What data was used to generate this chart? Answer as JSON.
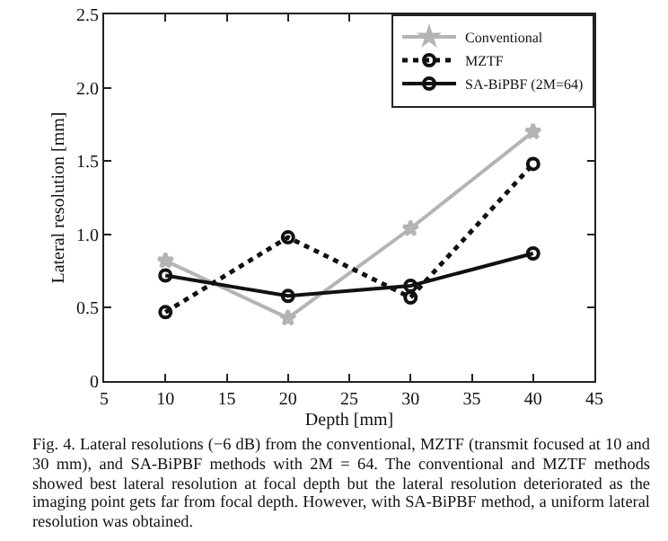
{
  "chart_data": {
    "type": "line",
    "xlabel": "Depth [mm]",
    "ylabel": "Lateral resolution [mm]",
    "x": [
      10,
      20,
      30,
      40
    ],
    "series": [
      {
        "name": "Conventional",
        "color": "#b4b4b4",
        "values": [
          0.82,
          0.43,
          1.04,
          1.7
        ],
        "marker": "star",
        "line_style": "solid"
      },
      {
        "name": "MZTF",
        "color": "#111111",
        "values": [
          0.47,
          0.98,
          0.57,
          1.48
        ],
        "marker": "circle",
        "line_style": "dotted"
      },
      {
        "name": "SA-BiPBF (2M=64)",
        "color": "#111111",
        "values": [
          0.72,
          0.58,
          0.65,
          0.87
        ],
        "marker": "circle",
        "line_style": "solid"
      }
    ],
    "xlim": [
      5,
      45
    ],
    "xticks": [
      5,
      10,
      15,
      20,
      25,
      30,
      35,
      40,
      45
    ],
    "ylim": [
      0,
      2.5
    ],
    "yticks": [
      0,
      {
        "value": 0.5,
        "label": "0.5"
      },
      {
        "value": 1,
        "label": "1.0"
      },
      {
        "value": 1.5,
        "label": "1.5"
      },
      {
        "value": 2,
        "label": "2.0"
      },
      {
        "value": 2.5,
        "label": "2.5"
      }
    ],
    "grid": false,
    "legend": "top right",
    "annotations": [
      "Fig. 4.   Lateral resolutions (−6 dB) from the conventional, MZTF (transmit focused at 10 and 30 mm), and SA-BiPBF methods with 2M = 64. The conventional and MZTF methods showed best lateral resolution at focal depth but the lateral resolution deteriorated as the imaging point gets far from focal depth. However, with SA-BiPBF method, a uniform lateral resolution was obtained."
    ]
  }
}
